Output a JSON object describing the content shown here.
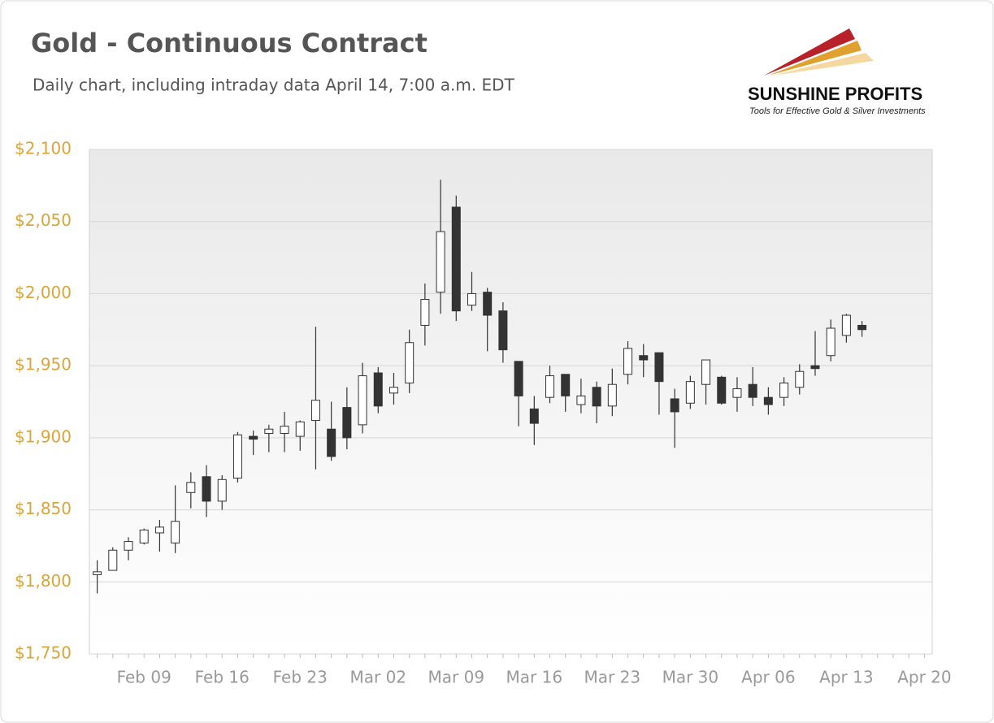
{
  "chart_data": {
    "type": "candlestick",
    "title": "Gold - Continuous Contract",
    "subtitle": "Daily chart, including intraday data April 14, 7:00 a.m. EDT",
    "categories": [
      null,
      null,
      null,
      "Feb 09",
      null,
      null,
      null,
      null,
      "Feb 16",
      null,
      null,
      null,
      null,
      "Feb 23",
      null,
      null,
      null,
      null,
      "Mar 02",
      null,
      null,
      null,
      null,
      "Mar 09",
      null,
      null,
      null,
      null,
      "Mar 16",
      null,
      null,
      null,
      null,
      "Mar 23",
      null,
      null,
      null,
      null,
      "Mar 30",
      null,
      null,
      null,
      null,
      "Apr 06",
      null,
      null,
      null,
      null,
      "Apr 13",
      null,
      null,
      null,
      null,
      "Apr 20"
    ],
    "open": [
      1805,
      1808,
      1822,
      1827,
      1834,
      1827,
      1862,
      1873,
      1856,
      1872,
      1901,
      1903,
      1903,
      1901,
      1912,
      1906,
      1921,
      1909,
      1945,
      1931,
      1938,
      1978,
      2001,
      2060,
      1992,
      2001,
      1988,
      1953,
      1920,
      1928,
      1944,
      1923,
      1935,
      1922,
      1944,
      1957,
      1959,
      1927,
      1924,
      1937,
      1942,
      1928,
      1937,
      1928,
      1928,
      1935,
      1950,
      1957,
      1971,
      1978,
      null,
      null,
      null,
      null
    ],
    "high": [
      1815,
      1824,
      1831,
      1837,
      1843,
      1867,
      1876,
      1881,
      1874,
      1904,
      1905,
      1909,
      1918,
      1912,
      1977,
      1925,
      1935,
      1952,
      1949,
      1945,
      1975,
      2007,
      2079,
      2068,
      2015,
      2004,
      1994,
      1953,
      1929,
      1950,
      1944,
      1941,
      1939,
      1948,
      1967,
      1965,
      1959,
      1934,
      1943,
      1954,
      1943,
      1942,
      1949,
      1935,
      1942,
      1951,
      1974,
      1982,
      1986,
      1981,
      null,
      null,
      null,
      null
    ],
    "low": [
      1792,
      1808,
      1815,
      1826,
      1821,
      1820,
      1851,
      1845,
      1850,
      1869,
      1888,
      1890,
      1890,
      1891,
      1878,
      1884,
      1892,
      1903,
      1917,
      1923,
      1931,
      1964,
      1986,
      1981,
      1988,
      1960,
      1952,
      1908,
      1895,
      1924,
      1918,
      1917,
      1910,
      1915,
      1937,
      1942,
      1916,
      1893,
      1920,
      1923,
      1923,
      1918,
      1922,
      1916,
      1922,
      1930,
      1943,
      1953,
      1966,
      1970,
      null,
      null,
      null,
      null
    ],
    "close": [
      1807,
      1822,
      1828,
      1836,
      1838,
      1842,
      1869,
      1856,
      1871,
      1902,
      1899,
      1906,
      1908,
      1911,
      1926,
      1887,
      1900,
      1943,
      1922,
      1935,
      1966,
      1996,
      2043,
      1988,
      2000,
      1985,
      1961,
      1929,
      1910,
      1943,
      1929,
      1929,
      1922,
      1937,
      1962,
      1954,
      1939,
      1918,
      1939,
      1954,
      1924,
      1934,
      1928,
      1923,
      1938,
      1946,
      1948,
      1976,
      1985,
      1975,
      null,
      null,
      null,
      null
    ],
    "up_color": "#ffffff",
    "down_color": "#333333",
    "ylim": [
      1750,
      2100
    ],
    "yticks": [
      {
        "value": 1750,
        "label": "$1,750"
      },
      {
        "value": 1800,
        "label": "$1,800"
      },
      {
        "value": 1850,
        "label": "$1,850"
      },
      {
        "value": 1900,
        "label": "$1,900"
      },
      {
        "value": 1950,
        "label": "$1,950"
      },
      {
        "value": 2000,
        "label": "$2,000"
      },
      {
        "value": 2050,
        "label": "$2,050"
      },
      {
        "value": 2100,
        "label": "$2,100"
      }
    ],
    "grid": true
  },
  "logo": {
    "name": "SUNSHINE PROFITS",
    "tagline": "Tools for Effective Gold & Silver Investments"
  }
}
